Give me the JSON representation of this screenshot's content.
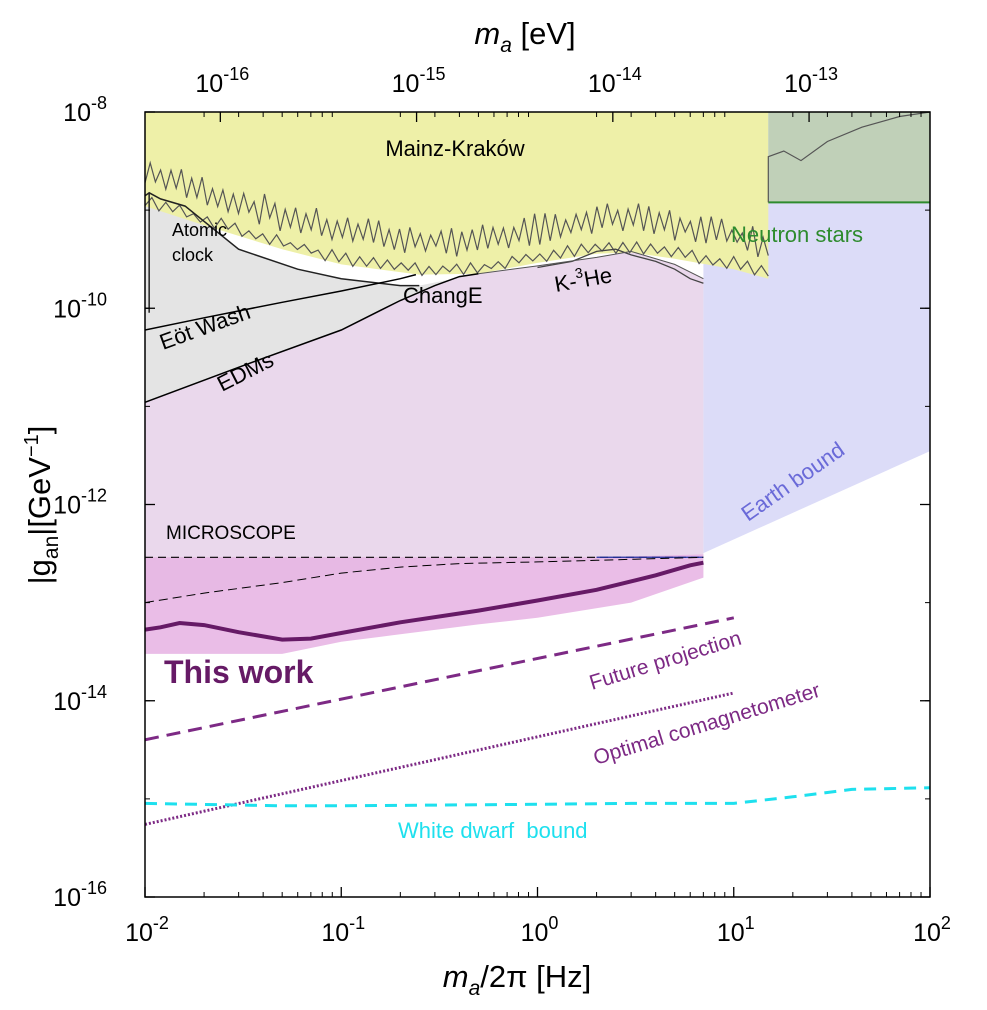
{
  "chart_data": {
    "type": "area",
    "title": "",
    "x_axis": {
      "label": {
        "pre": "m",
        "sub": "a",
        "post": "/2π [Hz]"
      },
      "scale": "log10",
      "lim": [
        0.01,
        100
      ],
      "ticks": [
        {
          "v": 0.01,
          "base": "10",
          "exp": "-2"
        },
        {
          "v": 0.1,
          "base": "10",
          "exp": "-1"
        },
        {
          "v": 1,
          "base": "10",
          "exp": "0"
        },
        {
          "v": 10,
          "base": "10",
          "exp": "1"
        },
        {
          "v": 100,
          "base": "10",
          "exp": "2"
        }
      ]
    },
    "top_axis": {
      "label": {
        "pre": "m",
        "sub": "a",
        "post": " [eV]"
      },
      "ticks": [
        {
          "v": 0.0242,
          "base": "10",
          "exp": "-16"
        },
        {
          "v": 0.242,
          "base": "10",
          "exp": "-15"
        },
        {
          "v": 2.42,
          "base": "10",
          "exp": "-14"
        },
        {
          "v": 24.2,
          "base": "10",
          "exp": "-13"
        }
      ]
    },
    "y_axis": {
      "label": {
        "pre": "|g",
        "sub": "an",
        "post": "|[GeV",
        "sup": "−1",
        "close": "]"
      },
      "scale": "log10",
      "lim": [
        1e-16,
        1e-08
      ],
      "ticks": [
        {
          "v": 1e-16,
          "base": "10",
          "exp": "-16"
        },
        {
          "v": 1e-14,
          "base": "10",
          "exp": "-14"
        },
        {
          "v": 1e-12,
          "base": "10",
          "exp": "-12"
        },
        {
          "v": 1e-10,
          "base": "10",
          "exp": "-10"
        },
        {
          "v": 1e-08,
          "base": "10",
          "exp": "-8"
        }
      ]
    },
    "colors": {
      "mainz": "#eef0a8",
      "atomic": "#e4e4e4",
      "changE": "#ead8ec",
      "earth": "#dcdcf8",
      "neutron": "#c0d0b8",
      "thisWorkBand": "#e8b6e4",
      "thisWork": "#661a66",
      "future": "#7d2a85",
      "cyan": "#1ee0ee",
      "microscope": "#dccfdc",
      "neutronText": "#2e8b2e",
      "earthText": "#6a6ad8"
    },
    "series": [
      {
        "name": "Mainz-Kraków",
        "kind": "region",
        "lower": [
          [
            0.01,
            1.1e-09
          ],
          [
            0.02,
            7e-10
          ],
          [
            0.05,
            4e-10
          ],
          [
            0.1,
            2.8e-10
          ],
          [
            0.25,
            2.2e-10
          ],
          [
            0.5,
            2.25e-10
          ],
          [
            1,
            2.9e-10
          ],
          [
            2,
            3.6e-10
          ],
          [
            3,
            3.7e-10
          ],
          [
            5,
            3.2e-10
          ],
          [
            10,
            2.5e-10
          ],
          [
            15,
            2e-10
          ]
        ]
      },
      {
        "name": "Atomic clock",
        "kind": "region",
        "upper": [
          [
            0.01,
            1.4e-09
          ],
          [
            0.0105,
            1.5e-09
          ],
          [
            0.012,
            1.3e-09
          ],
          [
            0.016,
            1.1e-09
          ],
          [
            0.03,
            4e-10
          ],
          [
            0.06,
            2.5e-10
          ],
          [
            0.1,
            2e-10
          ],
          [
            0.2,
            1.7e-10
          ],
          [
            0.25,
            1.7e-10
          ]
        ]
      },
      {
        "name": "Eöt Wash",
        "kind": "line",
        "points": [
          [
            0.01,
            6e-11
          ],
          [
            0.02,
            8e-11
          ],
          [
            0.05,
            1.15e-10
          ],
          [
            0.1,
            1.5e-10
          ],
          [
            0.2,
            2e-10
          ],
          [
            0.24,
            2.2e-10
          ]
        ]
      },
      {
        "name": "EDMs",
        "kind": "line",
        "points": [
          [
            0.01,
            1.1e-11
          ],
          [
            0.03,
            2.5e-11
          ],
          [
            0.1,
            6e-11
          ],
          [
            0.2,
            1.2e-10
          ],
          [
            0.3,
            1.7e-10
          ],
          [
            0.4,
            2.1e-10
          ],
          [
            0.5,
            2.25e-10
          ]
        ]
      },
      {
        "name": "ChangE",
        "kind": "region",
        "x_max": 7,
        "upper": [
          [
            0.5,
            2.25e-10
          ],
          [
            1,
            2.7e-10
          ],
          [
            2,
            3.3e-10
          ],
          [
            3,
            3.8e-10
          ],
          [
            5,
            2.8e-10
          ],
          [
            7,
            2e-10
          ]
        ]
      },
      {
        "name": "K-3He",
        "kind": "line",
        "points": [
          [
            1,
            2.6e-10
          ],
          [
            1.5,
            3e-10
          ],
          [
            2,
            3.8e-10
          ],
          [
            2.5,
            4e-10
          ],
          [
            3,
            3.5e-10
          ],
          [
            4,
            3e-10
          ],
          [
            5,
            2.5e-10
          ],
          [
            6,
            2e-10
          ],
          [
            7,
            1.8e-10
          ]
        ]
      },
      {
        "name": "Neutron stars",
        "kind": "region",
        "x_min": 15,
        "y_min": 1.2e-09,
        "edge": 1.2e-09
      },
      {
        "name": "Earth bound",
        "kind": "region",
        "lower": [
          [
            7,
            3.2e-13
          ],
          [
            100,
            3.5e-12
          ]
        ]
      },
      {
        "name": "MICROSCOPE",
        "kind": "line",
        "points": [
          [
            0.01,
            2.9e-13
          ],
          [
            7,
            2.9e-13
          ]
        ]
      },
      {
        "name": "Previous limit",
        "kind": "line",
        "points": [
          [
            0.01,
            1e-13
          ],
          [
            0.02,
            1.25e-13
          ],
          [
            0.05,
            1.6e-13
          ],
          [
            0.1,
            2e-13
          ],
          [
            0.2,
            2.3e-13
          ],
          [
            0.4,
            2.5e-13
          ],
          [
            1,
            2.6e-13
          ],
          [
            2,
            2.7e-13
          ],
          [
            7,
            2.9e-13
          ]
        ]
      },
      {
        "name": "This work band",
        "kind": "region",
        "upper": [
          [
            0.01,
            2.9e-13
          ],
          [
            2,
            2.9e-13
          ],
          [
            7,
            3.1e-13
          ]
        ],
        "lower": [
          [
            0.01,
            3e-14
          ],
          [
            0.05,
            3e-14
          ],
          [
            0.1,
            4e-14
          ],
          [
            0.5,
            6e-14
          ],
          [
            1,
            7e-14
          ],
          [
            3,
            1e-13
          ],
          [
            7,
            1.8e-13
          ]
        ]
      },
      {
        "name": "This work",
        "kind": "line",
        "points": [
          [
            0.01,
            5.3e-14
          ],
          [
            0.012,
            5.6e-14
          ],
          [
            0.015,
            6.2e-14
          ],
          [
            0.02,
            5.9e-14
          ],
          [
            0.03,
            5e-14
          ],
          [
            0.05,
            4.2e-14
          ],
          [
            0.07,
            4.3e-14
          ],
          [
            0.1,
            4.9e-14
          ],
          [
            0.2,
            6.3e-14
          ],
          [
            0.5,
            8.3e-14
          ],
          [
            1,
            1.05e-13
          ],
          [
            2,
            1.35e-13
          ],
          [
            4,
            1.9e-13
          ],
          [
            6,
            2.4e-13
          ],
          [
            7,
            2.55e-13
          ]
        ]
      },
      {
        "name": "Future projection",
        "kind": "line",
        "style": "dashed",
        "points": [
          [
            0.01,
            4e-15
          ],
          [
            10,
            7e-14
          ]
        ]
      },
      {
        "name": "Optimal comagnetometer",
        "kind": "line",
        "style": "dotted",
        "points": [
          [
            0.01,
            5.5e-16
          ],
          [
            10,
            1.2e-14
          ]
        ]
      },
      {
        "name": "White dwarf bound",
        "kind": "line",
        "style": "dashed",
        "points": [
          [
            0.01,
            9e-16
          ],
          [
            0.05,
            8.5e-16
          ],
          [
            0.1,
            8.5e-16
          ],
          [
            1,
            8.8e-16
          ],
          [
            3,
            9e-16
          ],
          [
            10,
            9e-16
          ],
          [
            20,
            1.05e-15
          ],
          [
            40,
            1.25e-15
          ],
          [
            100,
            1.3e-15
          ]
        ]
      }
    ],
    "labels": {
      "mainz": "Mainz-Kraków",
      "atomic_line1": "Atomic",
      "atomic_line2": "clock",
      "eotwash": "Eöt Wash",
      "edms": "EDMs",
      "change": "ChangE",
      "k3he_pre": "K-",
      "k3he_sup": "3",
      "k3he_post": "He",
      "neutron": "Neutron stars",
      "earth": "Earth bound",
      "microscope": "MICROSCOPE",
      "thiswork": "This work",
      "future": "Future projection",
      "optimal": "Optimal comagnetometer",
      "whitedwarf": "White dwarf  bound"
    }
  }
}
